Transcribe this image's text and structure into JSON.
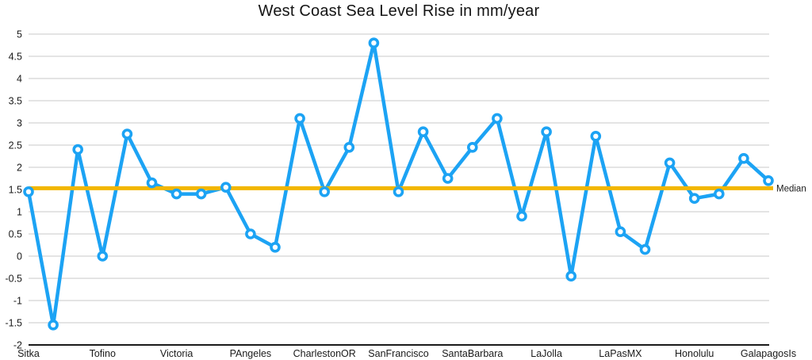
{
  "chart_data": {
    "type": "line",
    "title": "West Coast Sea Level Rise in mm/year",
    "categories": [
      "Sitka",
      "Tofino",
      "Victoria",
      "PAngeles",
      "CharlestonOR",
      "SanFrancisco",
      "SantaBarbara",
      "LaJolla",
      "LaPasMX",
      "Honolulu",
      "GalapagosIs"
    ],
    "category_tick_interval": 3,
    "values": [
      1.45,
      -1.55,
      2.4,
      0,
      2.75,
      1.65,
      1.4,
      1.4,
      1.55,
      0.5,
      0.2,
      3.1,
      1.45,
      2.45,
      4.8,
      1.45,
      2.8,
      1.75,
      2.45,
      3.1,
      0.9,
      2.8,
      -0.45,
      2.7,
      0.55,
      0.15,
      2.1,
      1.3,
      1.4,
      2.2,
      1.7
    ],
    "reference_line": {
      "label": "Median",
      "value": 1.53
    },
    "ylim": [
      -2,
      5
    ],
    "y_tick_step": 0.5,
    "grid": true,
    "legend_position": "none",
    "colors": {
      "series": "#1CA3F4",
      "marker_fill": "#ffffff",
      "reference": "#F2B600",
      "gridline": "#C8C8C8",
      "axis": "#1A1A1A",
      "text": "#1A1A1A"
    }
  }
}
